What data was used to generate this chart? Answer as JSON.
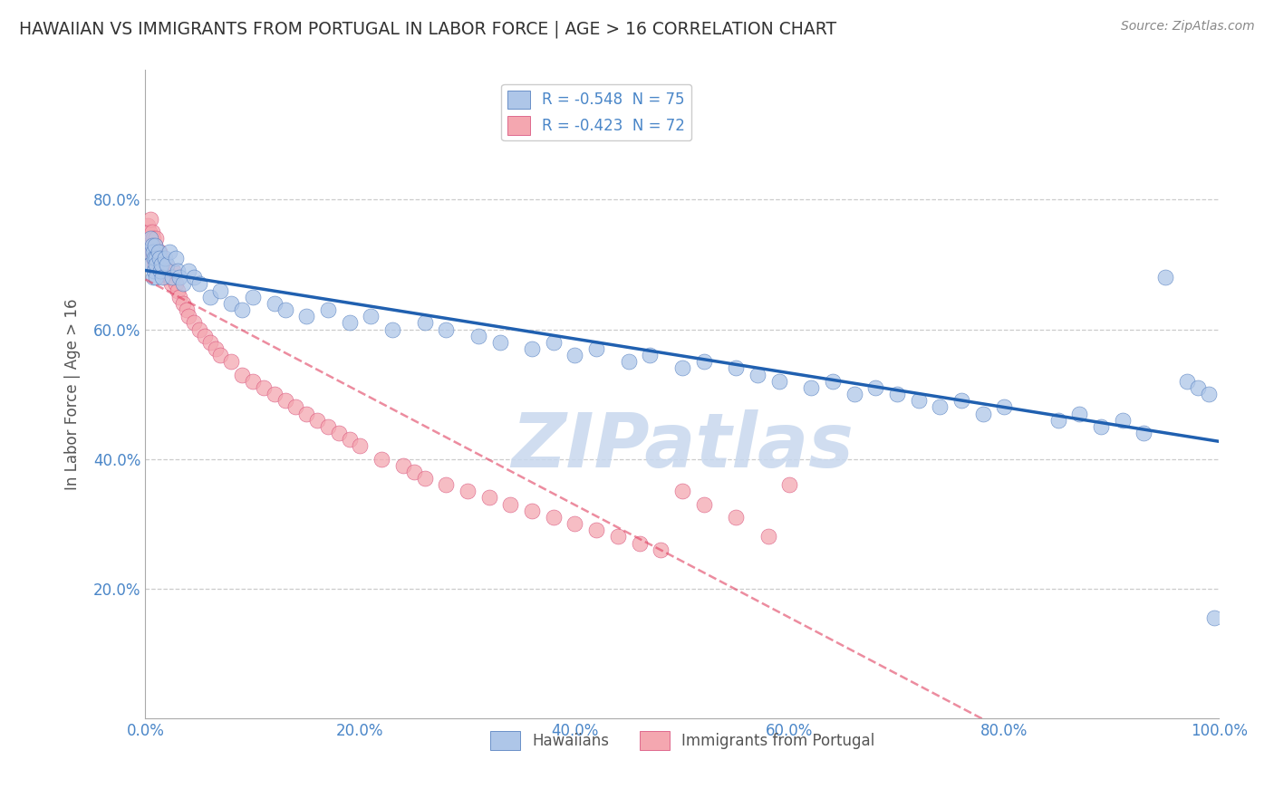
{
  "title": "HAWAIIAN VS IMMIGRANTS FROM PORTUGAL IN LABOR FORCE | AGE > 16 CORRELATION CHART",
  "source": "Source: ZipAtlas.com",
  "ylabel": "In Labor Force | Age > 16",
  "xlabel": "",
  "legend_label1": "R = -0.548  N = 75",
  "legend_label2": "R = -0.423  N = 72",
  "legend_name1": "Hawaiians",
  "legend_name2": "Immigrants from Portugal",
  "R1": -0.548,
  "N1": 75,
  "R2": -0.423,
  "N2": 72,
  "color1": "#aec6e8",
  "color2": "#f4a7b0",
  "line_color1": "#2060b0",
  "line_color2": "#e0406080",
  "watermark_color": "#c8d8ee",
  "xlim": [
    0.0,
    1.0
  ],
  "ylim": [
    0.0,
    1.0
  ],
  "xticks": [
    0.0,
    0.2,
    0.4,
    0.6,
    0.8,
    1.0
  ],
  "yticks": [
    0.2,
    0.4,
    0.6,
    0.8
  ],
  "xticklabels": [
    "0.0%",
    "20.0%",
    "40.0%",
    "60.0%",
    "80.0%",
    "100.0%"
  ],
  "yticklabels": [
    "20.0%",
    "40.0%",
    "60.0%",
    "80.0%"
  ],
  "background_color": "#ffffff",
  "grid_color": "#cccccc",
  "title_color": "#333333",
  "tick_color": "#4a86c8",
  "hawaii_x": [
    0.003,
    0.005,
    0.005,
    0.006,
    0.007,
    0.007,
    0.008,
    0.008,
    0.009,
    0.01,
    0.01,
    0.01,
    0.012,
    0.013,
    0.014,
    0.015,
    0.016,
    0.018,
    0.02,
    0.022,
    0.025,
    0.028,
    0.03,
    0.032,
    0.035,
    0.04,
    0.045,
    0.05,
    0.06,
    0.07,
    0.08,
    0.09,
    0.1,
    0.12,
    0.13,
    0.15,
    0.17,
    0.19,
    0.21,
    0.23,
    0.26,
    0.28,
    0.31,
    0.33,
    0.36,
    0.38,
    0.4,
    0.42,
    0.45,
    0.47,
    0.5,
    0.52,
    0.55,
    0.57,
    0.59,
    0.62,
    0.64,
    0.66,
    0.68,
    0.7,
    0.72,
    0.74,
    0.76,
    0.78,
    0.8,
    0.85,
    0.87,
    0.89,
    0.91,
    0.93,
    0.95,
    0.97,
    0.98,
    0.99,
    0.995
  ],
  "hawaii_y": [
    0.72,
    0.74,
    0.7,
    0.73,
    0.68,
    0.72,
    0.71,
    0.69,
    0.73,
    0.71,
    0.7,
    0.68,
    0.72,
    0.71,
    0.69,
    0.7,
    0.68,
    0.71,
    0.7,
    0.72,
    0.68,
    0.71,
    0.69,
    0.68,
    0.67,
    0.69,
    0.68,
    0.67,
    0.65,
    0.66,
    0.64,
    0.63,
    0.65,
    0.64,
    0.63,
    0.62,
    0.63,
    0.61,
    0.62,
    0.6,
    0.61,
    0.6,
    0.59,
    0.58,
    0.57,
    0.58,
    0.56,
    0.57,
    0.55,
    0.56,
    0.54,
    0.55,
    0.54,
    0.53,
    0.52,
    0.51,
    0.52,
    0.5,
    0.51,
    0.5,
    0.49,
    0.48,
    0.49,
    0.47,
    0.48,
    0.46,
    0.47,
    0.45,
    0.46,
    0.44,
    0.68,
    0.52,
    0.51,
    0.5,
    0.155
  ],
  "portugal_x": [
    0.002,
    0.003,
    0.004,
    0.005,
    0.005,
    0.006,
    0.006,
    0.007,
    0.007,
    0.008,
    0.008,
    0.009,
    0.009,
    0.01,
    0.01,
    0.011,
    0.012,
    0.013,
    0.014,
    0.015,
    0.016,
    0.018,
    0.019,
    0.02,
    0.022,
    0.024,
    0.026,
    0.028,
    0.03,
    0.032,
    0.035,
    0.038,
    0.04,
    0.045,
    0.05,
    0.055,
    0.06,
    0.065,
    0.07,
    0.08,
    0.09,
    0.1,
    0.11,
    0.12,
    0.13,
    0.14,
    0.15,
    0.16,
    0.17,
    0.18,
    0.19,
    0.2,
    0.22,
    0.24,
    0.25,
    0.26,
    0.28,
    0.3,
    0.32,
    0.34,
    0.36,
    0.38,
    0.4,
    0.42,
    0.44,
    0.46,
    0.48,
    0.5,
    0.52,
    0.55,
    0.58,
    0.6
  ],
  "portugal_y": [
    0.76,
    0.74,
    0.75,
    0.73,
    0.77,
    0.72,
    0.75,
    0.71,
    0.74,
    0.72,
    0.7,
    0.73,
    0.71,
    0.72,
    0.74,
    0.71,
    0.7,
    0.72,
    0.7,
    0.69,
    0.71,
    0.68,
    0.7,
    0.69,
    0.68,
    0.67,
    0.69,
    0.67,
    0.66,
    0.65,
    0.64,
    0.63,
    0.62,
    0.61,
    0.6,
    0.59,
    0.58,
    0.57,
    0.56,
    0.55,
    0.53,
    0.52,
    0.51,
    0.5,
    0.49,
    0.48,
    0.47,
    0.46,
    0.45,
    0.44,
    0.43,
    0.42,
    0.4,
    0.39,
    0.38,
    0.37,
    0.36,
    0.35,
    0.34,
    0.33,
    0.32,
    0.31,
    0.3,
    0.29,
    0.28,
    0.27,
    0.26,
    0.35,
    0.33,
    0.31,
    0.28,
    0.36
  ]
}
